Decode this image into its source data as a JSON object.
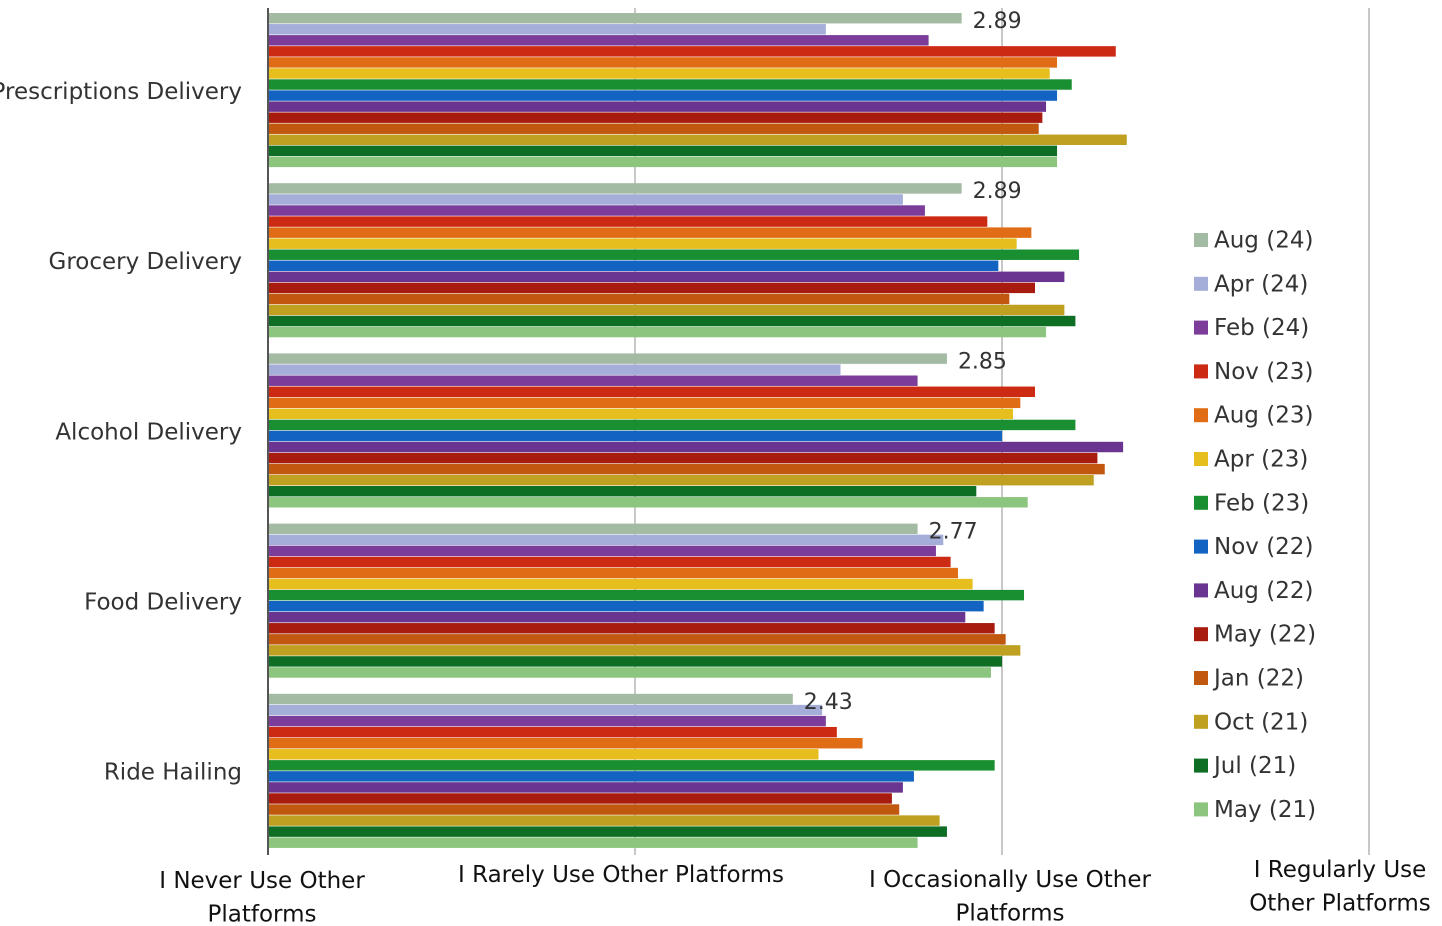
{
  "chart_data": {
    "type": "bar",
    "orientation": "horizontal",
    "title": "",
    "xlabel": "",
    "ylabel": "",
    "xlim": [
      1,
      4
    ],
    "grid": true,
    "legend_position": "right",
    "categories": [
      "Prescriptions Delivery",
      "Grocery Delivery",
      "Alcohol Delivery",
      "Food Delivery",
      "Ride Hailing"
    ],
    "x_ticks": [
      {
        "value": 1,
        "label": [
          "I Never Use Other",
          "Platforms"
        ]
      },
      {
        "value": 2,
        "label": [
          "I Rarely Use Other Platforms"
        ]
      },
      {
        "value": 3,
        "label": [
          "I Occasionally Use Other",
          "Platforms"
        ]
      },
      {
        "value": 4,
        "label": [
          "I Regularly Use",
          "Other Platforms"
        ]
      }
    ],
    "data_labels": [
      "2.89",
      "2.89",
      "2.85",
      "2.77",
      "2.43"
    ],
    "series": [
      {
        "name": "Aug (24)",
        "color": "#a3bba3",
        "values": [
          2.89,
          2.89,
          2.85,
          2.77,
          2.43
        ]
      },
      {
        "name": "Apr (24)",
        "color": "#a4aed8",
        "values": [
          2.52,
          2.73,
          2.56,
          2.84,
          2.51
        ]
      },
      {
        "name": "Feb (24)",
        "color": "#7b3d99",
        "values": [
          2.8,
          2.79,
          2.77,
          2.82,
          2.52
        ]
      },
      {
        "name": "Nov (23)",
        "color": "#cc2a12",
        "values": [
          3.31,
          2.96,
          3.09,
          2.86,
          2.55
        ]
      },
      {
        "name": "Aug (23)",
        "color": "#e06d16",
        "values": [
          3.15,
          3.08,
          3.05,
          2.88,
          2.62
        ]
      },
      {
        "name": "Apr (23)",
        "color": "#e6be1e",
        "values": [
          3.13,
          3.04,
          3.03,
          2.92,
          2.5
        ]
      },
      {
        "name": "Feb (23)",
        "color": "#1a8f32",
        "values": [
          3.19,
          3.21,
          3.2,
          3.06,
          2.98
        ]
      },
      {
        "name": "Nov (22)",
        "color": "#1263c2",
        "values": [
          3.15,
          2.99,
          3.0,
          2.95,
          2.76
        ]
      },
      {
        "name": "Aug (22)",
        "color": "#6a3590",
        "values": [
          3.12,
          3.17,
          3.33,
          2.9,
          2.73
        ]
      },
      {
        "name": "May (22)",
        "color": "#a81c10",
        "values": [
          3.11,
          3.09,
          3.26,
          2.98,
          2.7
        ]
      },
      {
        "name": "Jan (22)",
        "color": "#c0580f",
        "values": [
          3.1,
          3.02,
          3.28,
          3.01,
          2.72
        ]
      },
      {
        "name": "Oct (21)",
        "color": "#bfa020",
        "values": [
          3.34,
          3.17,
          3.25,
          3.05,
          2.83
        ]
      },
      {
        "name": "Jul (21)",
        "color": "#0e6e24",
        "values": [
          3.15,
          3.2,
          2.93,
          3.0,
          2.85
        ]
      },
      {
        "name": "May (21)",
        "color": "#8cc57e",
        "values": [
          3.15,
          3.12,
          3.07,
          2.97,
          2.77
        ]
      }
    ]
  }
}
